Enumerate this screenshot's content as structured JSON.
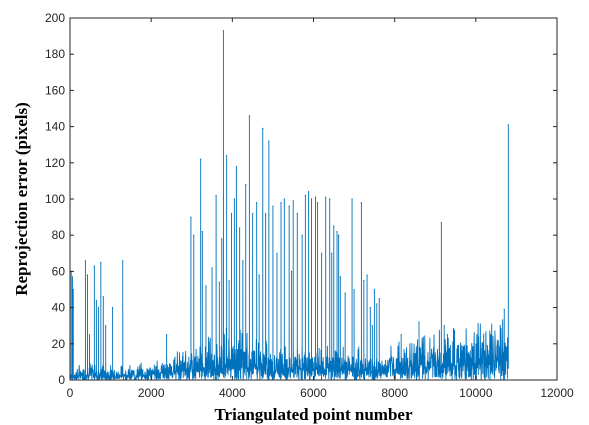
{
  "chart_data": {
    "type": "line",
    "title": "",
    "xlabel": "Triangulated point number",
    "ylabel": "Reprojection error (pixels)",
    "xlim": [
      0,
      12000
    ],
    "ylim": [
      0,
      200
    ],
    "x_ticks": [
      "0",
      "2000",
      "4000",
      "6000",
      "8000",
      "10000",
      "12000"
    ],
    "y_ticks": [
      "0",
      "20",
      "40",
      "60",
      "80",
      "100",
      "120",
      "140",
      "160",
      "180",
      "200"
    ],
    "grid": false,
    "series_color": "#0072BD",
    "x_max_point": 10800,
    "baseline": [
      [
        0,
        3
      ],
      [
        200,
        4
      ],
      [
        500,
        5
      ],
      [
        1000,
        4
      ],
      [
        1500,
        4
      ],
      [
        2000,
        5
      ],
      [
        2500,
        7
      ],
      [
        3000,
        9
      ],
      [
        3500,
        12
      ],
      [
        3800,
        14
      ],
      [
        4000,
        14
      ],
      [
        4500,
        12
      ],
      [
        5000,
        10
      ],
      [
        5500,
        9
      ],
      [
        6000,
        9
      ],
      [
        6500,
        9
      ],
      [
        7000,
        9
      ],
      [
        7500,
        8
      ],
      [
        7800,
        8
      ],
      [
        8000,
        10
      ],
      [
        8500,
        12
      ],
      [
        9000,
        13
      ],
      [
        9500,
        14
      ],
      [
        10000,
        15
      ],
      [
        10500,
        16
      ],
      [
        10800,
        17
      ]
    ],
    "spikes": [
      [
        30,
        60
      ],
      [
        60,
        57
      ],
      [
        80,
        50
      ],
      [
        380,
        66
      ],
      [
        430,
        58
      ],
      [
        480,
        25
      ],
      [
        600,
        63
      ],
      [
        650,
        44
      ],
      [
        700,
        40
      ],
      [
        760,
        65
      ],
      [
        820,
        46
      ],
      [
        880,
        30
      ],
      [
        1050,
        40
      ],
      [
        1300,
        66
      ],
      [
        2380,
        25
      ],
      [
        2980,
        90
      ],
      [
        3050,
        80
      ],
      [
        3220,
        122
      ],
      [
        3260,
        82
      ],
      [
        3350,
        52
      ],
      [
        3500,
        62
      ],
      [
        3600,
        102
      ],
      [
        3680,
        54
      ],
      [
        3740,
        78
      ],
      [
        3780,
        193
      ],
      [
        3860,
        124
      ],
      [
        3920,
        55
      ],
      [
        3980,
        92
      ],
      [
        4050,
        100
      ],
      [
        4100,
        118
      ],
      [
        4180,
        84
      ],
      [
        4260,
        66
      ],
      [
        4330,
        108
      ],
      [
        4420,
        146
      ],
      [
        4500,
        92
      ],
      [
        4600,
        98
      ],
      [
        4660,
        58
      ],
      [
        4750,
        139
      ],
      [
        4820,
        92
      ],
      [
        4900,
        132
      ],
      [
        5000,
        96
      ],
      [
        5100,
        70
      ],
      [
        5200,
        98
      ],
      [
        5280,
        100
      ],
      [
        5400,
        96
      ],
      [
        5460,
        60
      ],
      [
        5500,
        99
      ],
      [
        5600,
        92
      ],
      [
        5720,
        80
      ],
      [
        5800,
        102
      ],
      [
        5880,
        104
      ],
      [
        5950,
        100
      ],
      [
        6050,
        101
      ],
      [
        6100,
        98
      ],
      [
        6200,
        70
      ],
      [
        6300,
        101
      ],
      [
        6400,
        100
      ],
      [
        6450,
        70
      ],
      [
        6500,
        85
      ],
      [
        6580,
        82
      ],
      [
        6620,
        80
      ],
      [
        6660,
        57
      ],
      [
        6780,
        48
      ],
      [
        6950,
        100
      ],
      [
        7000,
        50
      ],
      [
        7180,
        98
      ],
      [
        7240,
        55
      ],
      [
        7320,
        58
      ],
      [
        7400,
        40
      ],
      [
        7450,
        30
      ],
      [
        7500,
        50
      ],
      [
        7560,
        42
      ],
      [
        7620,
        45
      ],
      [
        8160,
        25
      ],
      [
        8600,
        32
      ],
      [
        9150,
        87
      ],
      [
        9220,
        30
      ],
      [
        9300,
        25
      ],
      [
        9900,
        20
      ],
      [
        10250,
        25
      ],
      [
        10600,
        30
      ],
      [
        10700,
        39
      ],
      [
        10800,
        141
      ]
    ]
  }
}
